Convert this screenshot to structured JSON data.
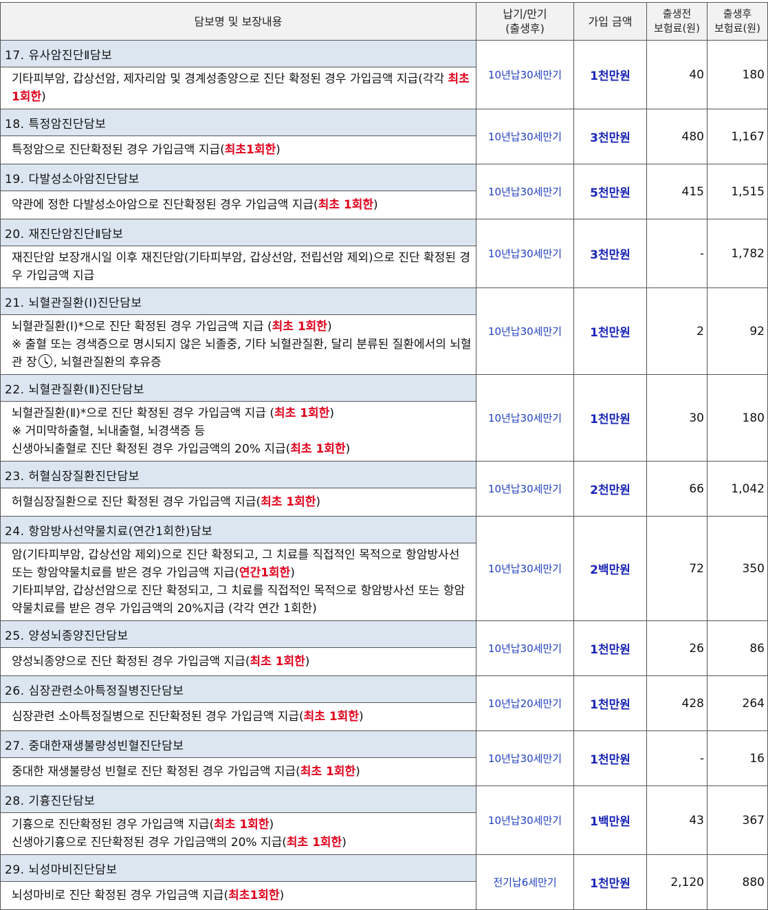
{
  "header": {
    "col_name": "담보명 및 보장내용",
    "col_term": "납기/만기\n(출생후)",
    "col_amount": "가입 금액",
    "col_before": "출생전\n보험료(원)",
    "col_after": "출생후\n보험료(원)"
  },
  "rows": [
    {
      "name": "17. 유사암진단Ⅱ담보",
      "desc": [
        "기타피부암, 갑상선암, 제자리암 및 경계성종양으로 진단 확정된 경우 가입금액 지급(각각 ",
        "최초 1회한",
        ")"
      ],
      "term": "10년납30세만기",
      "amount": "1천만원",
      "before": "40",
      "after": "180"
    },
    {
      "name": "18. 특정암진단담보",
      "desc": [
        "특정암으로 진단확정된 경우 가입금액 지급(",
        "최초1회한",
        ")"
      ],
      "term": "10년납30세만기",
      "amount": "3천만원",
      "before": "480",
      "after": "1,167"
    },
    {
      "name": "19. 다발성소아암진단담보",
      "desc": [
        "약관에 정한 다발성소아암으로 진단확정된 경우 가입금액 지급(",
        "최초 1회한",
        ")"
      ],
      "term": "10년납30세만기",
      "amount": "5천만원",
      "before": "415",
      "after": "1,515"
    },
    {
      "name": "20. 재진단암진단Ⅱ담보",
      "desc": [
        "재진단암 보장개시일 이후 재진단암(기타피부암, 갑상선암, 전립선암 제외)으로 진단 확정된 경우 가입금액 지급",
        "",
        ""
      ],
      "term": "10년납30세만기",
      "amount": "3천만원",
      "before": "-",
      "after": "1,782"
    },
    {
      "name": "21. 뇌혈관질환(Ⅰ)진단담보",
      "desc": [
        "뇌혈관질환(Ⅰ)*으로 진단 확정된 경우 가입금액 지급 (",
        "최초 1회한",
        ")"
      ],
      "note": "※ 출혈 또는 경색증으로 명시되지 않은 뇌졸중, 기타 뇌혈관질환, 달리 분류된 질환에서의 뇌혈관 장",
      "note_tail": ", 뇌혈관질환의 후유증",
      "term": "10년납30세만기",
      "amount": "1천만원",
      "before": "2",
      "after": "92"
    },
    {
      "name": "22. 뇌혈관질환(Ⅱ)진단담보",
      "desc": [
        "뇌혈관질환(Ⅱ)*으로 진단 확정된 경우 가입금액 지급 (",
        "최초 1회한",
        ")"
      ],
      "note2": "※ 거미막하출혈, 뇌내출혈, 뇌경색증 등",
      "desc2": [
        "신생아뇌출혈로 진단 확정된 경우 가입금액의 20% 지급(",
        "최초 1회한",
        ")"
      ],
      "term": "10년납30세만기",
      "amount": "1천만원",
      "before": "30",
      "after": "180"
    },
    {
      "name": "23. 허혈심장질환진단담보",
      "desc": [
        "허혈심장질환으로 진단 확정된 경우 가입금액 지급(",
        "최초 1회한",
        ")"
      ],
      "term": "10년납30세만기",
      "amount": "2천만원",
      "before": "66",
      "after": "1,042"
    },
    {
      "name": "24. 항암방사선약물치료(연간1회한)담보",
      "desc": [
        "암(기타피부암, 갑상선암 제외)으로 진단 확정되고, 그 치료를 직접적인 목적으로 항암방사선 또는 항암약물치료를 받은 경우 가입금액 지급(",
        "연간1회한",
        ")"
      ],
      "desc2": [
        "기타피부암, 갑상선암으로 진단 확정되고, 그 치료를 직접적인 목적으로 항암방사선 또는 항암약물치료를 받은 경우 가입금액의 20%지급 (각각 연간 1회한)",
        "",
        ""
      ],
      "term": "10년납30세만기",
      "amount": "2백만원",
      "before": "72",
      "after": "350"
    },
    {
      "name": "25. 양성뇌종양진단담보",
      "desc": [
        "양성뇌종양으로 진단 확정된 경우 가입금액 지급(",
        "최초 1회한",
        ")"
      ],
      "term": "10년납30세만기",
      "amount": "1천만원",
      "before": "26",
      "after": "86"
    },
    {
      "name": "26. 심장관련소아특정질병진단담보",
      "desc": [
        "심장관련 소아특정질병으로 진단확정된 경우 가입금액 지급(",
        "최초 1회한",
        ")"
      ],
      "term": "10년납20세만기",
      "amount": "1천만원",
      "before": "428",
      "after": "264"
    },
    {
      "name": "27. 중대한재생불량성빈혈진단담보",
      "desc": [
        "중대한 재생불량성 빈혈로 진단 확정된 경우 가입금액 지급(",
        "최초 1회한",
        ")"
      ],
      "term": "10년납30세만기",
      "amount": "1천만원",
      "before": "-",
      "after": "16"
    },
    {
      "name": "28. 기흉진단담보",
      "desc": [
        "기흉으로 진단확정된 경우 가입금액 지급(",
        "최초 1회한",
        ")"
      ],
      "desc2": [
        "신생아기흉으로 진단확정된 경우 가입금액의 20% 지급(",
        "최초 1회한",
        ")"
      ],
      "term": "10년납30세만기",
      "amount": "1백만원",
      "before": "43",
      "after": "367"
    },
    {
      "name": "29. 뇌성마비진단담보",
      "desc": [
        "뇌성마비로 진단 확정된 경우 가입금액 지급(",
        "최초1회한",
        ")"
      ],
      "term": "전기납6세만기",
      "amount": "1천만원",
      "before": "2,120",
      "after": "880"
    }
  ],
  "icons": {
    "clock": "clock-icon"
  },
  "colors": {
    "name_bg": "#dce6f1",
    "highlight": "#e0001b",
    "amount": "#1a26b5",
    "term": "#1f3fbf"
  }
}
